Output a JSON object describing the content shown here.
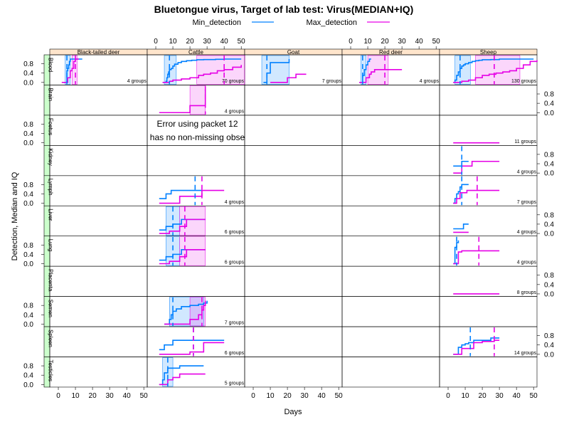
{
  "chart_data": {
    "type": "line",
    "title": "Bluetongue virus, Target of lab test: Virus(MEDIAN+IQ)",
    "xlabel": "Days",
    "ylabel": "Detection, Median and IQ",
    "xlim": [
      -5,
      52
    ],
    "ylim": [
      -0.05,
      1.0
    ],
    "x_ticks": [
      0,
      10,
      20,
      30,
      40,
      50
    ],
    "y_ticks": [
      0.0,
      0.4,
      0.8
    ],
    "y_tick_labels": [
      "0.0",
      "0.4",
      "0.8"
    ],
    "legend_position": "top",
    "colors": {
      "Min_detection": "#0080ff",
      "Max_detection": "#e600e6"
    },
    "series": [
      {
        "name": "Min_detection"
      },
      {
        "name": "Max_detection"
      }
    ],
    "columns": [
      "Black-tailed deer",
      "Cattle",
      "Goat",
      "Red deer",
      "Sheep"
    ],
    "rows": [
      "Blood",
      "Brain",
      "Foetus",
      "Kidney",
      "Lymph",
      "Liver",
      "Lung",
      "Placenta",
      "Semen",
      "Spleen",
      "Testicles"
    ],
    "error_message": [
      "Error using packet 12",
      "has no non-missing obse"
    ],
    "error_panel": {
      "row": "Foetus",
      "col": "Cattle"
    },
    "panels": [
      {
        "row": "Blood",
        "col": "Black-tailed deer",
        "groups": "4 groups",
        "min": {
          "x": [
            3,
            5,
            5.5,
            6,
            6.5,
            7,
            14
          ],
          "y": [
            0,
            0.5,
            0.6,
            0.75,
            0.9,
            1.0,
            1.0
          ],
          "median": 5,
          "iq": [
            4,
            7
          ]
        },
        "max": {
          "x": [
            2,
            5.5,
            7,
            8,
            9,
            10,
            12
          ],
          "y": [
            0,
            0.2,
            0.5,
            0.6,
            0.9,
            1.0,
            1.0
          ],
          "median": 10,
          "iq": [
            8,
            11
          ]
        }
      },
      {
        "row": "Blood",
        "col": "Cattle",
        "groups": "70 groups",
        "min": {
          "x": [
            4,
            6,
            6.5,
            7,
            7.5,
            8,
            9,
            10,
            11,
            13,
            15,
            18,
            21,
            24,
            28,
            35,
            40,
            50
          ],
          "y": [
            0,
            0.05,
            0.2,
            0.35,
            0.45,
            0.55,
            0.6,
            0.7,
            0.78,
            0.85,
            0.9,
            0.93,
            0.95,
            0.97,
            0.98,
            0.99,
            1.0,
            1.0
          ],
          "median": 8,
          "iq": [
            5,
            12
          ]
        },
        "max": {
          "x": [
            4,
            8,
            10,
            15,
            20,
            25,
            28,
            32,
            36,
            40,
            45,
            50
          ],
          "y": [
            0,
            0.05,
            0.1,
            0.15,
            0.2,
            0.3,
            0.35,
            0.4,
            0.5,
            0.55,
            0.65,
            0.75
          ],
          "median": 40,
          "iq": [
            24,
            55
          ]
        }
      },
      {
        "row": "Blood",
        "col": "Goat",
        "groups": "7 groups",
        "min": {
          "x": [
            6,
            8,
            10,
            21
          ],
          "y": [
            0,
            0.4,
            0.85,
            1.0
          ],
          "median": 8,
          "iq": [
            5,
            21
          ]
        },
        "max": {
          "x": [
            10,
            20,
            25,
            31
          ],
          "y": [
            0,
            0.2,
            0.35,
            0.35
          ],
          "median": null,
          "iq": null
        }
      },
      {
        "row": "Blood",
        "col": "Red deer",
        "groups": "4 groups",
        "min": {
          "x": [
            5,
            7,
            8,
            9,
            10,
            11,
            12
          ],
          "y": [
            0,
            0.3,
            0.55,
            0.75,
            0.9,
            1.0,
            1.0
          ],
          "median": 7,
          "iq": [
            6,
            9
          ]
        },
        "max": {
          "x": [
            5,
            9,
            11,
            12,
            14,
            30
          ],
          "y": [
            0,
            0.2,
            0.35,
            0.45,
            0.55,
            0.55
          ],
          "median": 20,
          "iq": [
            10,
            22
          ]
        }
      },
      {
        "row": "Blood",
        "col": "Sheep",
        "groups": "130 groups",
        "min": {
          "x": [
            3,
            4,
            5,
            6,
            7,
            8,
            9,
            10,
            12,
            14,
            16,
            18,
            20,
            25,
            30,
            50
          ],
          "y": [
            0,
            0.1,
            0.3,
            0.45,
            0.6,
            0.7,
            0.75,
            0.8,
            0.85,
            0.9,
            0.93,
            0.95,
            0.97,
            0.98,
            1.0,
            1.0
          ],
          "median": 7,
          "iq": [
            4,
            13
          ]
        },
        "max": {
          "x": [
            3,
            8,
            12,
            16,
            20,
            24,
            28,
            32,
            36,
            40,
            44,
            48,
            52
          ],
          "y": [
            0,
            0.05,
            0.1,
            0.2,
            0.3,
            0.35,
            0.4,
            0.45,
            0.5,
            0.6,
            0.75,
            0.9,
            0.95
          ],
          "median": 27,
          "iq": [
            16,
            42
          ]
        }
      },
      {
        "row": "Brain",
        "col": "Cattle",
        "groups": "4 groups",
        "min": null,
        "max": {
          "x": [
            2,
            20,
            29
          ],
          "y": [
            0,
            0.3,
            1.0
          ],
          "median": 29,
          "iq": [
            20,
            29
          ]
        }
      },
      {
        "row": "Foetus",
        "col": "Sheep",
        "groups": "11 groups",
        "min": null,
        "max": {
          "x": [
            3,
            30
          ],
          "y": [
            0,
            0
          ],
          "median": null,
          "iq": null
        }
      },
      {
        "row": "Kidney",
        "col": "Sheep",
        "groups": "4 groups",
        "min": {
          "x": [
            3,
            8,
            12
          ],
          "y": [
            0.3,
            0.5,
            0.5
          ],
          "median": 8,
          "iq": null
        },
        "max": {
          "x": [
            3,
            8,
            14,
            30
          ],
          "y": [
            0,
            0.3,
            0.5,
            0.5
          ],
          "median": null,
          "iq": null
        }
      },
      {
        "row": "Lymph",
        "col": "Cattle",
        "groups": "4 groups",
        "min": {
          "x": [
            2,
            6,
            9,
            27
          ],
          "y": [
            0.2,
            0.4,
            0.55,
            0.55
          ],
          "median": 23,
          "iq": null
        },
        "max": {
          "x": [
            2,
            14,
            27,
            40
          ],
          "y": [
            0,
            0.3,
            0.55,
            0.55
          ],
          "median": 27,
          "iq": null
        }
      },
      {
        "row": "Lymph",
        "col": "Sheep",
        "groups": "7 groups",
        "min": {
          "x": [
            3,
            4,
            5,
            6,
            7,
            8,
            12
          ],
          "y": [
            0,
            0.2,
            0.4,
            0.5,
            0.7,
            0.8,
            0.8
          ],
          "median": 8,
          "iq": null
        },
        "max": {
          "x": [
            3,
            5,
            7,
            11,
            15,
            30
          ],
          "y": [
            0,
            0.2,
            0.45,
            0.55,
            0.55,
            0.55
          ],
          "median": 17,
          "iq": null
        }
      },
      {
        "row": "Liver",
        "col": "Cattle",
        "groups": "6 groups",
        "min": {
          "x": [
            2,
            6,
            10,
            15,
            29
          ],
          "y": [
            0.15,
            0.3,
            0.4,
            0.6,
            0.6
          ],
          "median": 10,
          "iq": [
            6,
            14
          ]
        },
        "max": {
          "x": [
            2,
            8,
            14,
            18,
            29
          ],
          "y": [
            0,
            0.1,
            0.3,
            0.6,
            0.6
          ],
          "median": 17,
          "iq": [
            14,
            29
          ]
        }
      },
      {
        "row": "Liver",
        "col": "Sheep",
        "groups": "4 groups",
        "min": {
          "x": [
            3,
            7,
            9,
            12
          ],
          "y": [
            0.2,
            0.2,
            0.4,
            0.4
          ],
          "median": null,
          "iq": null
        },
        "max": {
          "x": [
            3,
            12
          ],
          "y": [
            0.05,
            0.05
          ],
          "median": null,
          "iq": null
        }
      },
      {
        "row": "Lung",
        "col": "Cattle",
        "groups": "6 groups",
        "min": {
          "x": [
            2,
            6,
            10,
            15,
            29
          ],
          "y": [
            0.15,
            0.3,
            0.4,
            0.6,
            0.6
          ],
          "median": 10,
          "iq": [
            6,
            14
          ]
        },
        "max": {
          "x": [
            2,
            8,
            14,
            18,
            29
          ],
          "y": [
            0,
            0.1,
            0.3,
            0.6,
            0.6
          ],
          "median": 17,
          "iq": [
            14,
            29
          ]
        }
      },
      {
        "row": "Lung",
        "col": "Sheep",
        "groups": "4 groups",
        "min": {
          "x": [
            3,
            4,
            5,
            6
          ],
          "y": [
            0,
            0.7,
            0.9,
            1.0
          ],
          "median": 5,
          "iq": null
        },
        "max": {
          "x": [
            3,
            6,
            8,
            30
          ],
          "y": [
            0,
            0.5,
            0.55,
            0.55
          ],
          "median": 18,
          "iq": null
        }
      },
      {
        "row": "Placenta",
        "col": "Sheep",
        "groups": "8 groups",
        "min": null,
        "max": {
          "x": [
            3,
            30
          ],
          "y": [
            0,
            0
          ],
          "median": null,
          "iq": null
        }
      },
      {
        "row": "Semen",
        "col": "Cattle",
        "groups": "7 groups",
        "min": {
          "x": [
            5,
            8,
            9,
            10,
            12,
            15,
            20,
            25,
            28,
            30
          ],
          "y": [
            0,
            0.2,
            0.4,
            0.55,
            0.65,
            0.75,
            0.8,
            0.85,
            0.9,
            1.0
          ],
          "median": 10,
          "iq": [
            8,
            28
          ]
        },
        "max": {
          "x": [
            5,
            20,
            25,
            27,
            28,
            29
          ],
          "y": [
            0,
            0.2,
            0.4,
            0.6,
            0.8,
            1.0
          ],
          "median": 27,
          "iq": [
            20,
            29
          ]
        }
      },
      {
        "row": "Spleen",
        "col": "Cattle",
        "groups": "6 groups",
        "min": {
          "x": [
            2,
            5,
            10,
            40
          ],
          "y": [
            0.2,
            0.4,
            0.6,
            0.6
          ],
          "median": 22,
          "iq": null
        },
        "max": {
          "x": [
            2,
            20,
            28,
            40
          ],
          "y": [
            0,
            0.1,
            0.5,
            0.5
          ],
          "median": 22,
          "iq": null
        }
      },
      {
        "row": "Spleen",
        "col": "Sheep",
        "groups": "14 groups",
        "min": {
          "x": [
            3,
            6,
            8,
            10,
            12,
            15,
            25,
            30
          ],
          "y": [
            0,
            0.3,
            0.4,
            0.45,
            0.5,
            0.6,
            0.7,
            0.7
          ],
          "median": 13,
          "iq": null
        },
        "max": {
          "x": [
            3,
            8,
            15,
            20,
            27,
            30
          ],
          "y": [
            0,
            0.25,
            0.5,
            0.55,
            0.6,
            0.6
          ],
          "median": 27,
          "iq": null
        }
      },
      {
        "row": "Testicles",
        "col": "Cattle",
        "groups": "5 groups",
        "min": {
          "x": [
            2,
            4,
            5,
            7,
            14,
            20,
            28
          ],
          "y": [
            0,
            0.2,
            0.5,
            0.7,
            0.8,
            0.8,
            0.8
          ],
          "median": 7,
          "iq": [
            4,
            10
          ]
        },
        "max": {
          "x": [
            2,
            7,
            10,
            14,
            29
          ],
          "y": [
            0,
            0.2,
            0.3,
            0.45,
            0.45
          ],
          "median": null,
          "iq": null
        }
      }
    ]
  }
}
